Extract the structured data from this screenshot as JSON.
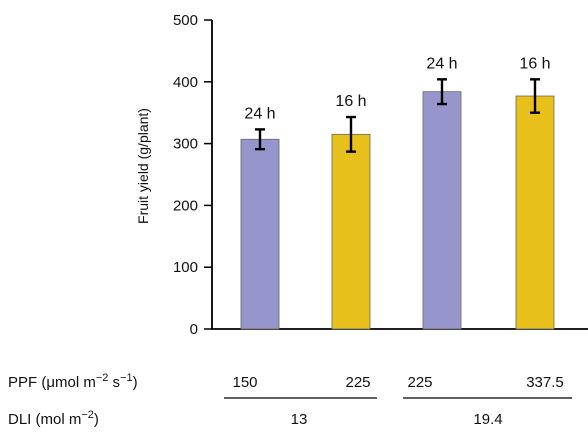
{
  "chart_data": {
    "type": "bar",
    "ylabel": "Fruit yield (g/plant)",
    "ylim": [
      0,
      500
    ],
    "yticks": [
      "0",
      "100",
      "200",
      "300",
      "400",
      "500"
    ],
    "bars": [
      {
        "label": "24 h",
        "value": 307,
        "error": 16,
        "color": "#9696cc"
      },
      {
        "label": "16 h",
        "value": 315,
        "error": 28,
        "color": "#e8c01c"
      },
      {
        "label": "24 h",
        "value": 384,
        "error": 20,
        "color": "#9696cc"
      },
      {
        "label": "16 h",
        "value": 377,
        "error": 27,
        "color": "#e8c01c"
      }
    ],
    "ppf": {
      "label_main": "PPF (",
      "label_unit": "μmol m",
      "label_exp1": "−2",
      "label_mid": " s",
      "label_exp2": "−1",
      "label_end": ")",
      "values": [
        "150",
        "225",
        "225",
        "337.5"
      ]
    },
    "dli": {
      "label_main": "DLI (mol m",
      "label_exp": "−2",
      "label_end": ")",
      "values": [
        "13",
        "19.4"
      ]
    }
  }
}
